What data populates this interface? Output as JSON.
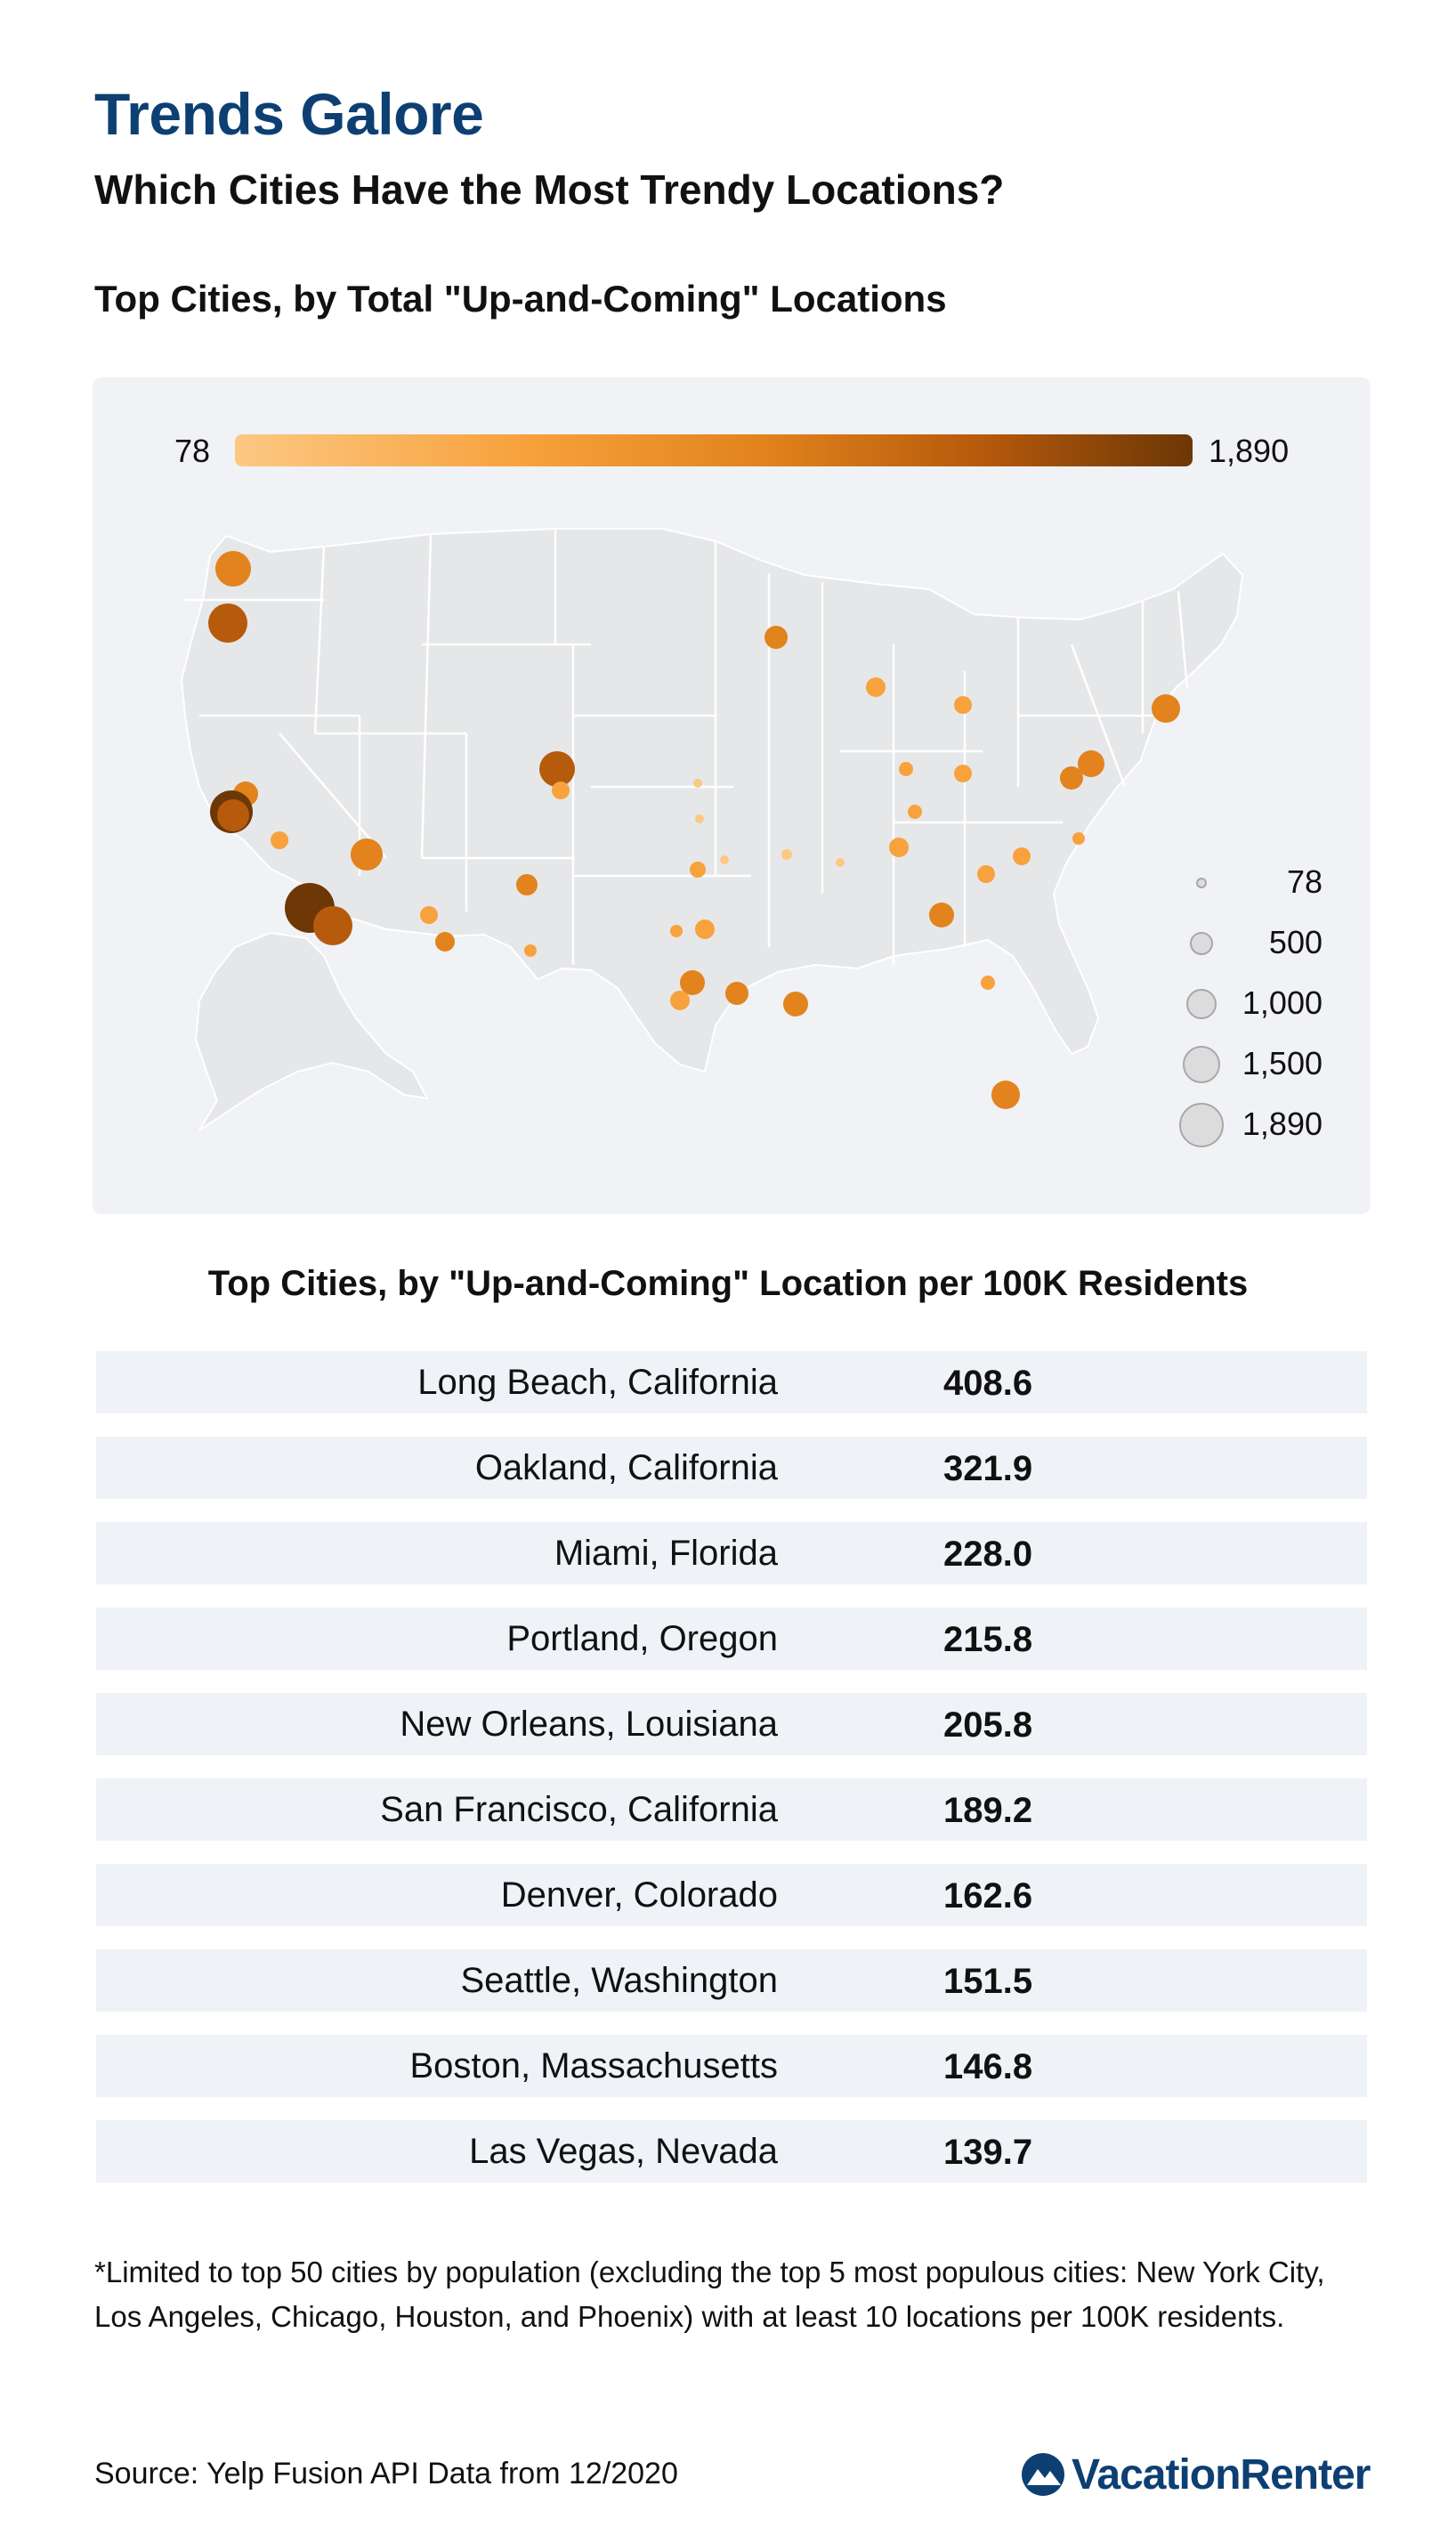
{
  "header": {
    "title": "Trends Galore",
    "subtitle": "Which Cities Have the Most Trendy Locations?"
  },
  "map_section": {
    "heading": "Top Cities, by Total \"Up-and-Coming\" Locations",
    "color_scale": {
      "min_label": "78",
      "max_label": "1,890",
      "colors": [
        "#fcc883",
        "#f7a23d",
        "#e2831d",
        "#b65a0c",
        "#6d3706"
      ]
    },
    "size_legend": [
      "78",
      "500",
      "1,000",
      "1,500",
      "1,890"
    ]
  },
  "chart_data": {
    "type": "bubble-map",
    "value_range": [
      78,
      1890
    ],
    "table_heading": "Top Cities, by \"Up-and-Coming\" Location per 100K Residents",
    "rows": [
      {
        "city": "Long Beach, California",
        "value": "408.6"
      },
      {
        "city": "Oakland, California",
        "value": "321.9"
      },
      {
        "city": "Miami, Florida",
        "value": "228.0"
      },
      {
        "city": "Portland, Oregon",
        "value": "215.8"
      },
      {
        "city": "New Orleans, Louisiana",
        "value": "205.8"
      },
      {
        "city": "San Francisco, California",
        "value": "189.2"
      },
      {
        "city": "Denver, Colorado",
        "value": "162.6"
      },
      {
        "city": "Seattle, Washington",
        "value": "151.5"
      },
      {
        "city": "Boston, Massachusetts",
        "value": "146.8"
      },
      {
        "city": "Las Vegas, Nevada",
        "value": "139.7"
      }
    ]
  },
  "footer": {
    "footnote": "*Limited to top 50 cities by population (excluding the top 5 most populous cities: New York City, Los Angeles, Chicago, Houston, and Phoenix) with at least 10 locations per 100K residents.",
    "source": "Source: Yelp Fusion API Data from 12/2020",
    "brand": "VacationRenter"
  }
}
